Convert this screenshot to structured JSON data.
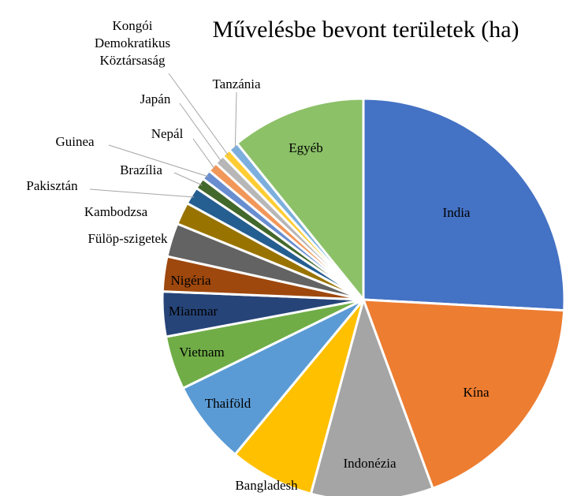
{
  "chart_data": {
    "type": "pie",
    "title": "Művelésbe bevont területek (ha)",
    "categories": [
      "India",
      "Kína",
      "Indonézia",
      "Bangladesh",
      "Thaiföld",
      "Vietnam",
      "Mianmar",
      "Nigéria",
      "Fülöp-szigetek",
      "Kambodzsa",
      "Pakisztán",
      "Brazília",
      "Guinea",
      "Nepál",
      "Japán",
      "Kongói Demokratikus Köztársaság",
      "Tanzánia",
      "Egyéb"
    ],
    "values": [
      25.8,
      18.5,
      9.8,
      6.8,
      6.7,
      4.3,
      3.6,
      2.8,
      2.7,
      1.8,
      1.4,
      0.9,
      0.8,
      0.8,
      0.8,
      0.7,
      0.8,
      10.8
    ],
    "colors": [
      "#4472c4",
      "#ed7d31",
      "#a5a5a5",
      "#ffc000",
      "#5b9bd5",
      "#70ad47",
      "#264478",
      "#9e480e",
      "#636363",
      "#997300",
      "#255e91",
      "#43682b",
      "#698ed0",
      "#f1975a",
      "#b7b7b7",
      "#ffcd33",
      "#7cafdd",
      "#8cc168"
    ]
  }
}
